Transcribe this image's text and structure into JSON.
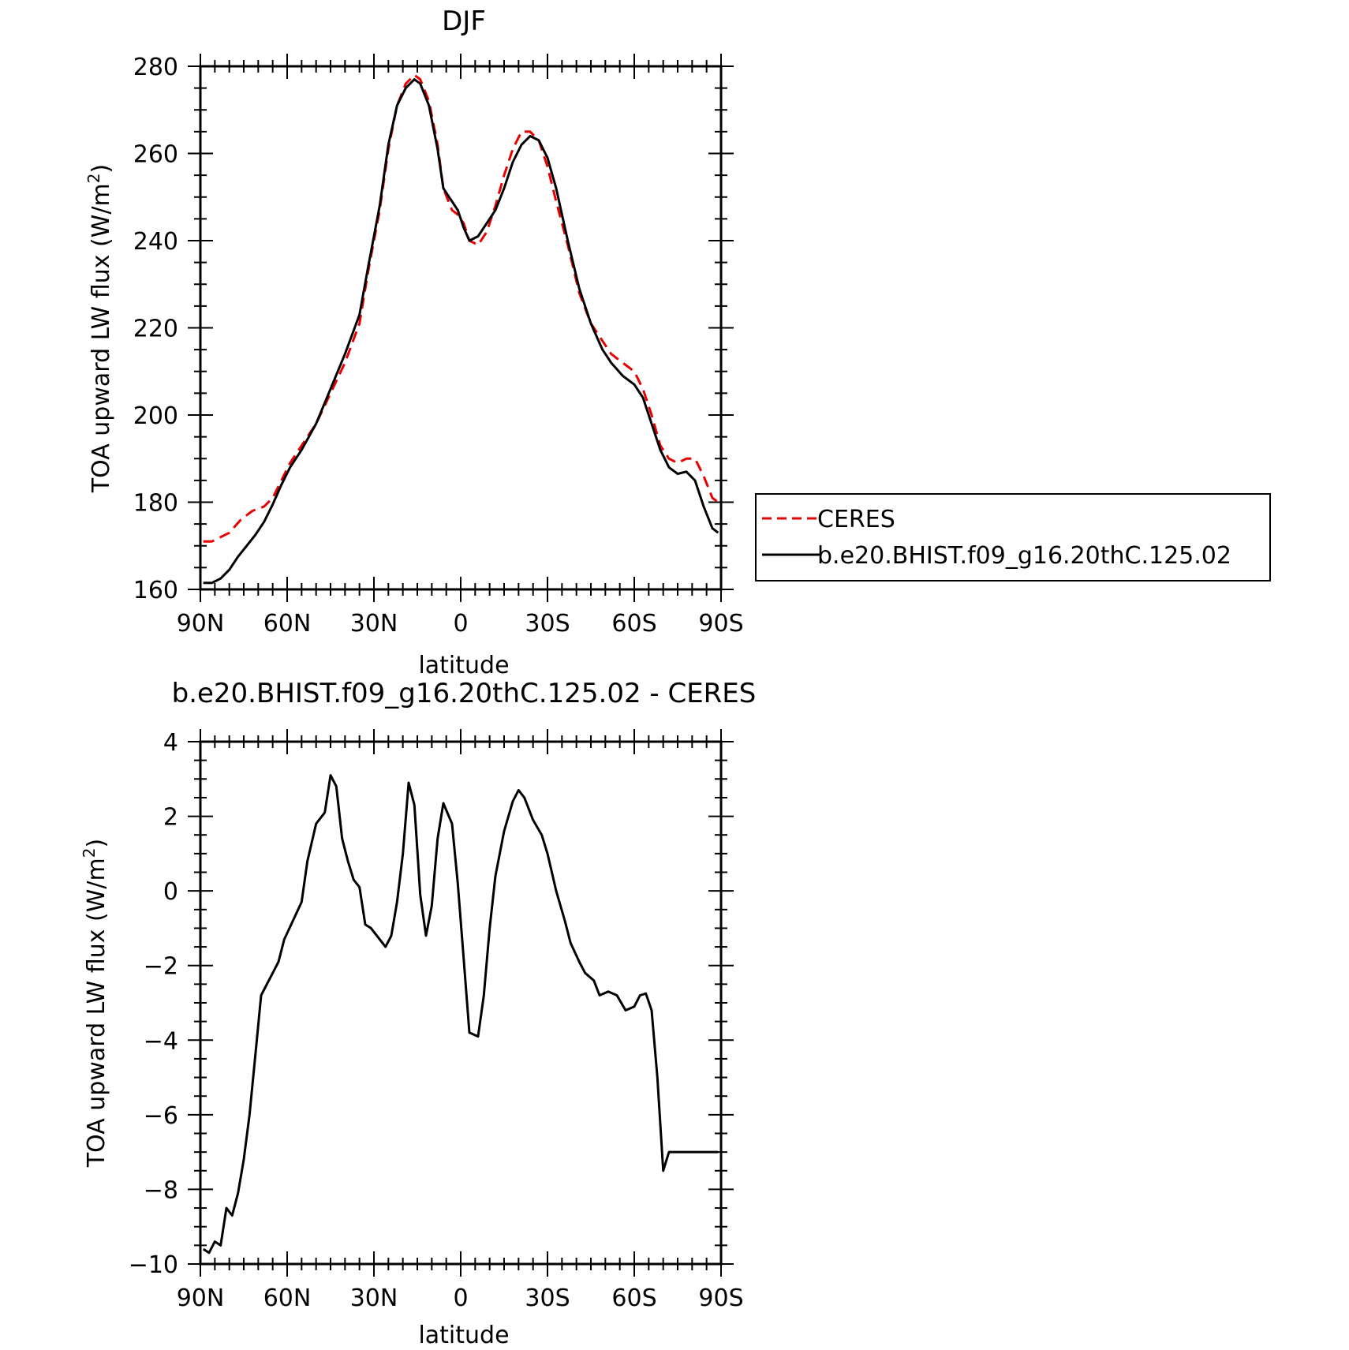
{
  "chart_data": [
    {
      "type": "line",
      "title": "DJF",
      "xlabel": "latitude",
      "ylabel": "TOA upward LW flux (W/m",
      "ylabel_sup": "2",
      "ylabel_end": ")",
      "xlim": [
        90,
        -90
      ],
      "ylim": [
        160,
        280
      ],
      "xticks": [
        90,
        60,
        30,
        0,
        -30,
        -60,
        -90
      ],
      "xtick_labels": [
        "90N",
        "60N",
        "30N",
        "0",
        "30S",
        "60S",
        "90S"
      ],
      "yticks": [
        160,
        180,
        200,
        220,
        240,
        260,
        280
      ],
      "ytick_labels": [
        "160",
        "180",
        "200",
        "220",
        "240",
        "260",
        "280"
      ],
      "legend": {
        "position": "right",
        "entries": [
          "CERES",
          "b.e20.BHIST.f09_g16.20thC.125.02"
        ]
      },
      "series": [
        {
          "name": "CERES",
          "color": "#e60000",
          "dash": true,
          "x": [
            89,
            86,
            80,
            76,
            72,
            68,
            65,
            62,
            59,
            55,
            50,
            45,
            40,
            35,
            32,
            28,
            25,
            22,
            19,
            16,
            14,
            11,
            8,
            6,
            3,
            1,
            -1,
            -3,
            -6,
            -9,
            -12,
            -15,
            -18,
            -21,
            -24,
            -27,
            -30,
            -33,
            -37,
            -41,
            -45,
            -49,
            -52,
            -56,
            -60,
            -63,
            -66,
            -69,
            -72,
            -75,
            -78,
            -81,
            -84,
            -87,
            -89
          ],
          "y": [
            171,
            171,
            173,
            176,
            178,
            179,
            181,
            185,
            189,
            193,
            198,
            205,
            212,
            221,
            233,
            247,
            261,
            271,
            276,
            278,
            277,
            272,
            262,
            252,
            247,
            246,
            244,
            240,
            239,
            242,
            248,
            255,
            261,
            265,
            265,
            263,
            257,
            249,
            239,
            228,
            221,
            217,
            214,
            212,
            210,
            206,
            200,
            193,
            190,
            189,
            190,
            190,
            186,
            181,
            180
          ]
        },
        {
          "name": "b.e20.BHIST.f09_g16.20thC.125.02",
          "color": "#000000",
          "dash": false,
          "x": [
            89,
            86,
            83,
            80,
            77,
            74,
            71,
            68,
            65,
            62,
            59,
            55,
            50,
            45,
            40,
            35,
            32,
            28,
            25,
            22,
            19,
            16,
            14,
            11,
            8,
            6,
            3,
            1,
            -1,
            -3,
            -6,
            -9,
            -12,
            -15,
            -18,
            -21,
            -24,
            -27,
            -30,
            -33,
            -37,
            -41,
            -45,
            -49,
            -52,
            -56,
            -60,
            -63,
            -66,
            -69,
            -72,
            -75,
            -78,
            -81,
            -84,
            -87,
            -89
          ],
          "y": [
            161.5,
            161.5,
            162.5,
            164.5,
            167.5,
            170,
            172.5,
            175.5,
            179.5,
            184,
            188,
            192,
            198,
            206,
            214,
            223,
            234,
            248,
            262,
            271,
            275,
            277,
            276,
            271,
            261,
            252,
            249,
            247,
            243,
            240,
            241,
            244,
            247,
            252,
            258,
            262,
            264,
            263,
            259,
            252,
            240,
            229,
            221,
            215,
            212,
            209,
            207,
            204,
            198,
            192,
            188,
            186.5,
            187,
            185,
            179,
            174,
            173
          ]
        }
      ]
    },
    {
      "type": "line",
      "title": "b.e20.BHIST.f09_g16.20thC.125.02 - CERES",
      "xlabel": "latitude",
      "ylabel": "TOA upward LW flux (W/m",
      "ylabel_sup": "2",
      "ylabel_end": ")",
      "xlim": [
        90,
        -90
      ],
      "ylim": [
        -10,
        4
      ],
      "xticks": [
        90,
        60,
        30,
        0,
        -30,
        -60,
        -90
      ],
      "xtick_labels": [
        "90N",
        "60N",
        "30N",
        "0",
        "30S",
        "60S",
        "90S"
      ],
      "yticks": [
        -10,
        -8,
        -6,
        -4,
        -2,
        0,
        2,
        4
      ],
      "ytick_labels": [
        "−10",
        "−8",
        "−6",
        "−4",
        "−2",
        "0",
        "2",
        "4"
      ],
      "series": [
        {
          "name": "",
          "color": "#000000",
          "dash": false,
          "x": [
            89,
            87,
            85,
            83,
            81,
            79,
            77,
            75,
            73,
            71,
            69,
            67,
            65,
            63,
            61,
            58,
            55,
            53,
            50,
            47,
            45,
            43,
            41,
            39,
            37,
            35,
            33,
            31,
            28,
            26,
            24,
            22,
            20,
            18,
            16,
            14,
            12,
            10,
            8,
            6,
            3,
            1,
            -1,
            -3,
            -6,
            -8,
            -10,
            -12,
            -15,
            -18,
            -20,
            -22,
            -25,
            -28,
            -30,
            -33,
            -36,
            -38,
            -41,
            -43,
            -46,
            -48,
            -51,
            -54,
            -57,
            -60,
            -62,
            -64,
            -66,
            -68,
            -70,
            -72,
            -74,
            -76,
            -78,
            -80,
            -82,
            -84,
            -86,
            -88,
            -89
          ],
          "y": [
            -9.6,
            -9.7,
            -9.4,
            -9.5,
            -8.5,
            -8.7,
            -8.1,
            -7.2,
            -6,
            -4.4,
            -2.8,
            -2.5,
            -2.2,
            -1.9,
            -1.3,
            -0.8,
            -0.3,
            0.8,
            1.8,
            2.1,
            3.1,
            2.8,
            1.4,
            0.8,
            0.3,
            0.1,
            -0.9,
            -1.0,
            -1.3,
            -1.5,
            -1.2,
            -0.3,
            1.0,
            2.9,
            2.3,
            -0.1,
            -1.2,
            -0.4,
            1.4,
            2.35,
            1.8,
            0.2,
            -1.8,
            -3.8,
            -3.9,
            -2.8,
            -1.0,
            0.4,
            1.6,
            2.4,
            2.7,
            2.5,
            1.9,
            1.5,
            1.0,
            0.0,
            -0.8,
            -1.4,
            -1.9,
            -2.2,
            -2.4,
            -2.8,
            -2.7,
            -2.8,
            -3.2,
            -3.1,
            -2.8,
            -2.75,
            -3.2,
            -5.0,
            -7.5,
            -7.0,
            -7.0,
            -7.0,
            -7.0,
            -7.0,
            -7.0,
            -7.0,
            -7.0,
            -7.0,
            -7.0
          ]
        }
      ]
    }
  ]
}
